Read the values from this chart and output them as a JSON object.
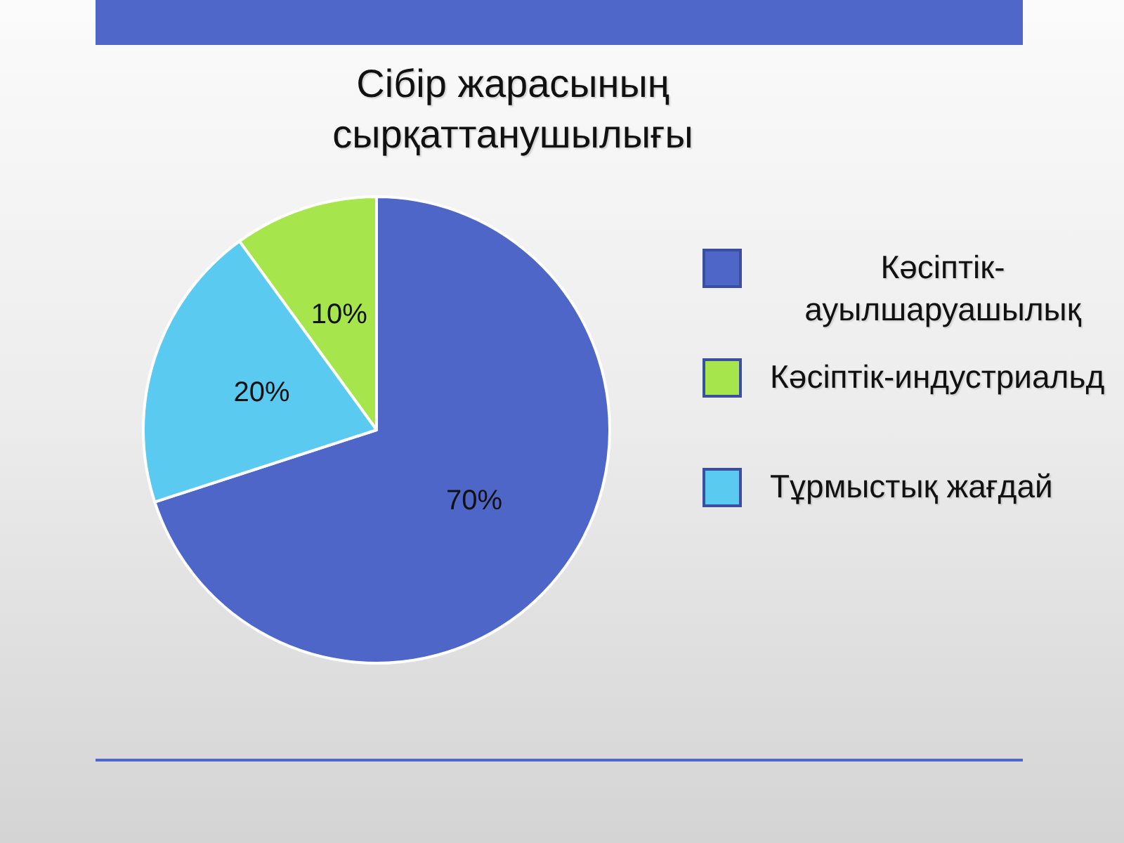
{
  "chart_data": {
    "type": "pie",
    "title": "Сібір жарасының сырқаттанушылығы",
    "categories": [
      "Кәсіптік-ауылшаруашылық",
      "Кәсіптік-индустриальд",
      "Тұрмыстық жағдай"
    ],
    "values": [
      70,
      10,
      20
    ],
    "colors": [
      "#4d66c8",
      "#a6e64c",
      "#5bcaf0"
    ],
    "value_labels": [
      "70%",
      "10%",
      "20%"
    ],
    "legend": "right"
  }
}
